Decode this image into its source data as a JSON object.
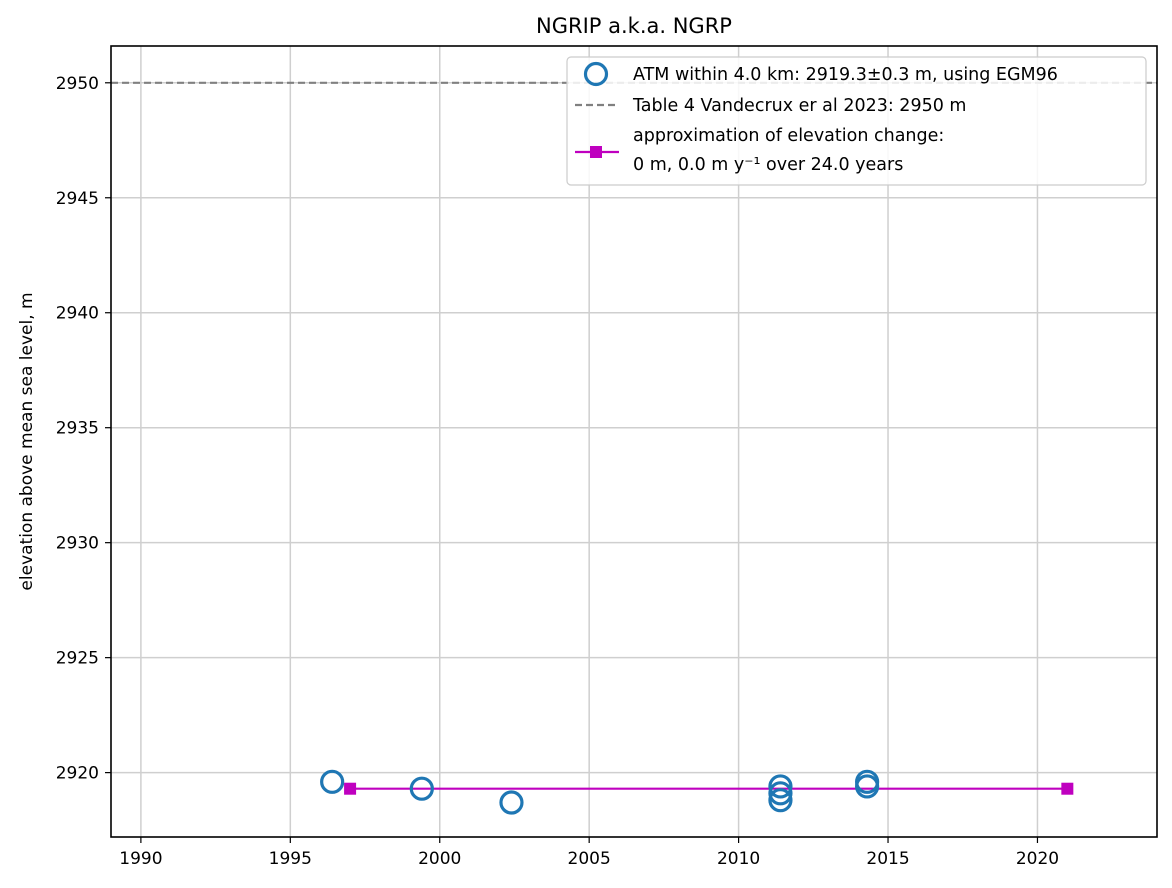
{
  "chart_data": {
    "type": "scatter",
    "title": "NGRIP a.k.a. NGRP",
    "xlabel": "",
    "ylabel": "elevation above mean sea level, m",
    "xlim": [
      1989,
      2024
    ],
    "ylim": [
      2917.2,
      2951.6
    ],
    "xticks": [
      1990,
      1995,
      2000,
      2005,
      2010,
      2015,
      2020
    ],
    "yticks": [
      2920,
      2925,
      2930,
      2935,
      2940,
      2945,
      2950
    ],
    "grid": true,
    "legend_position": "upper-right",
    "series": [
      {
        "name": "ATM within 4.0 km: 2919.3±0.3 m, using EGM96",
        "kind": "scatter",
        "marker": "open-circle",
        "color": "#1f77b4",
        "points": [
          {
            "x": 1996.4,
            "y": 2919.6
          },
          {
            "x": 1999.4,
            "y": 2919.3
          },
          {
            "x": 2002.4,
            "y": 2918.7
          },
          {
            "x": 2011.4,
            "y": 2919.4
          },
          {
            "x": 2011.4,
            "y": 2919.1
          },
          {
            "x": 2011.4,
            "y": 2918.8
          },
          {
            "x": 2014.3,
            "y": 2919.6
          },
          {
            "x": 2014.3,
            "y": 2919.4
          }
        ]
      },
      {
        "name": "Table 4 Vandecrux er al 2023: 2950 m",
        "kind": "hline",
        "style": "dashed",
        "color": "#808080",
        "y": 2950
      },
      {
        "name_line1": "approximation of elevation change:",
        "name_line2": "0 m, 0.0 m y⁻¹ over 24.0 years",
        "kind": "line",
        "marker": "square",
        "color": "#bf00bf",
        "points": [
          {
            "x": 1997.0,
            "y": 2919.3
          },
          {
            "x": 2021.0,
            "y": 2919.3
          }
        ]
      }
    ]
  }
}
